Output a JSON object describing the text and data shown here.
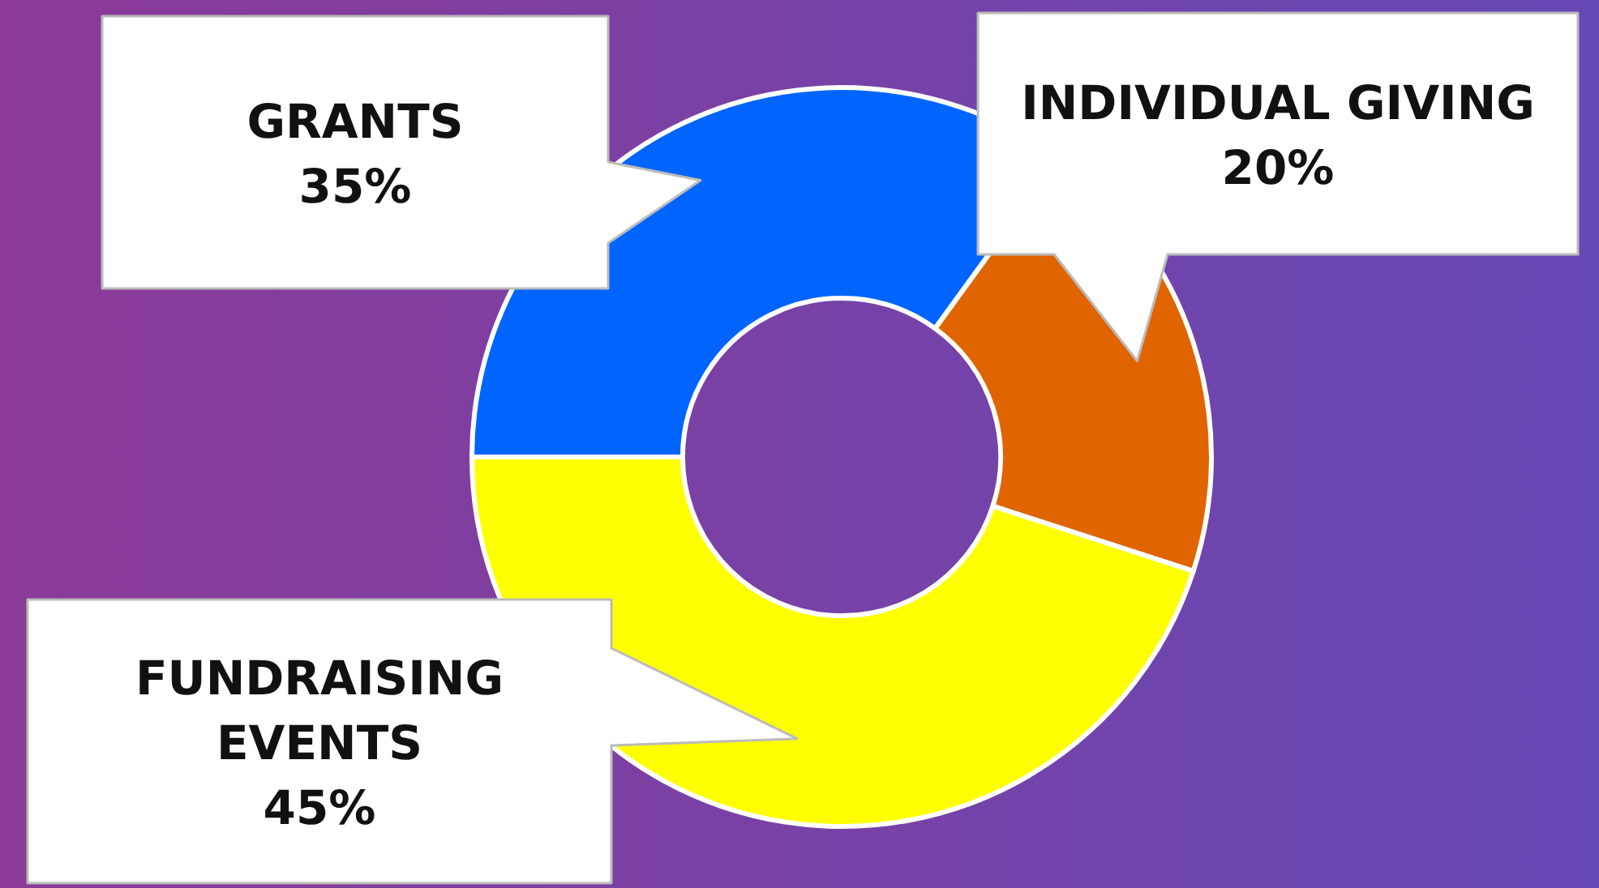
{
  "chart_data": {
    "type": "donut",
    "categories": [
      "GRANTS",
      "INDIVIDUAL GIVING",
      "FUNDRAISING EVENTS"
    ],
    "values": [
      35,
      20,
      45
    ],
    "colors": [
      "#0064ff",
      "#e06400",
      "#ffff00"
    ],
    "value_labels": [
      "35%",
      "20%",
      "45%"
    ]
  }
}
